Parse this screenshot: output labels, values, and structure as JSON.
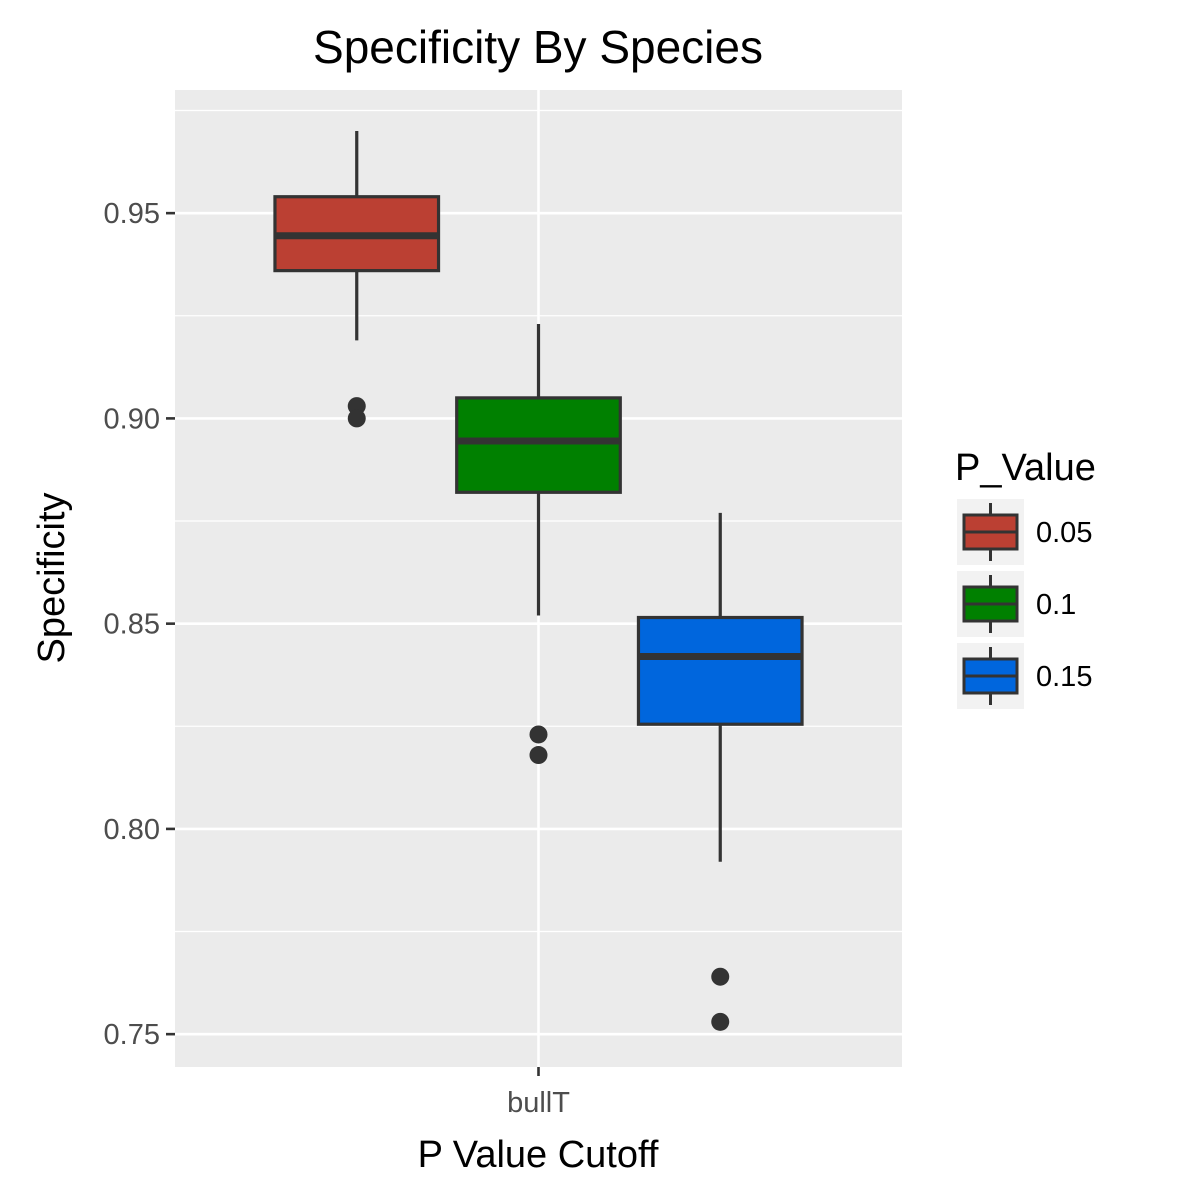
{
  "chart_data": {
    "type": "box",
    "title": "Specificity By Species",
    "xlabel": "P Value Cutoff",
    "ylabel": "Specificity",
    "categories": [
      "bullT"
    ],
    "ylim": [
      0.742,
      0.98
    ],
    "yticks": [
      0.75,
      0.8,
      0.85,
      0.9,
      0.95
    ],
    "ytick_labels": [
      "0.75",
      "0.80",
      "0.85",
      "0.90",
      "0.95"
    ],
    "grid": true,
    "legend": {
      "title": "P_Value",
      "position": "right"
    },
    "series": [
      {
        "name": "0.05",
        "color": "#bb4033",
        "category": "bullT",
        "whisker_low": 0.919,
        "q1": 0.936,
        "median": 0.9445,
        "q3": 0.954,
        "whisker_high": 0.97,
        "outliers": [
          0.903,
          0.9
        ]
      },
      {
        "name": "0.1",
        "color": "#008000",
        "category": "bullT",
        "whisker_low": 0.852,
        "q1": 0.882,
        "median": 0.8945,
        "q3": 0.905,
        "whisker_high": 0.923,
        "outliers": [
          0.823,
          0.818
        ]
      },
      {
        "name": "0.15",
        "color": "#0066dd",
        "category": "bullT",
        "whisker_low": 0.792,
        "q1": 0.8255,
        "median": 0.842,
        "q3": 0.8515,
        "whisker_high": 0.877,
        "outliers": [
          0.764,
          0.753
        ]
      }
    ]
  }
}
